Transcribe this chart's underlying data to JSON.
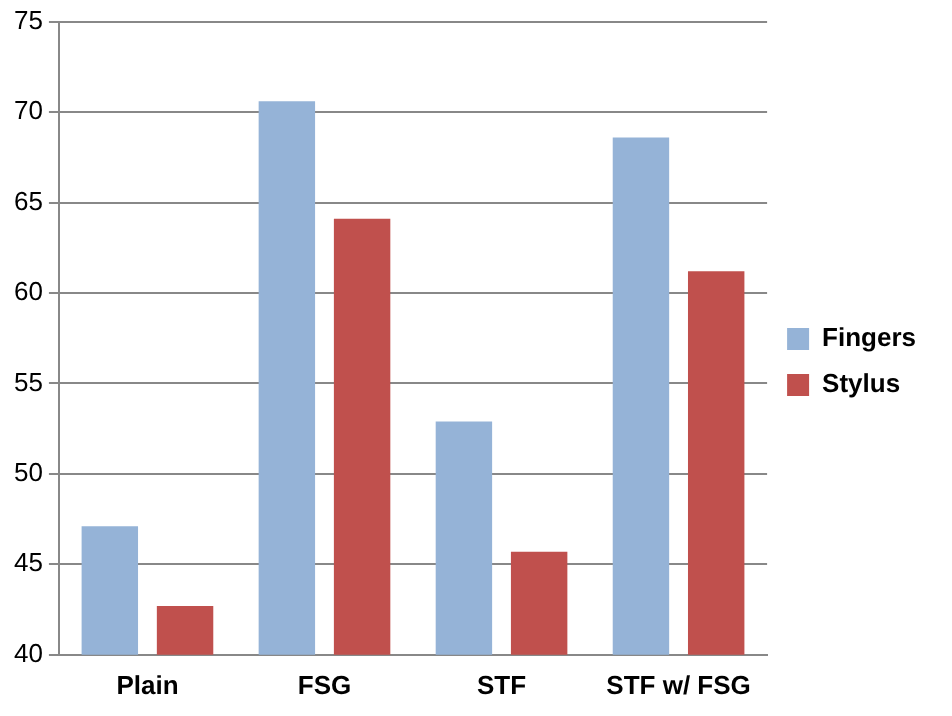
{
  "chart_data": {
    "type": "bar",
    "categories": [
      "Plain",
      "FSG",
      "STF",
      "STF w/ FSG"
    ],
    "series": [
      {
        "name": "Fingers",
        "color": "#95b3d7",
        "values": [
          47.1,
          70.6,
          52.9,
          68.6
        ]
      },
      {
        "name": "Stylus",
        "color": "#c0504d",
        "values": [
          42.7,
          64.1,
          45.7,
          61.2
        ]
      }
    ],
    "ylim": [
      40,
      75
    ],
    "yticks": [
      40,
      45,
      50,
      55,
      60,
      65,
      70,
      75
    ],
    "grid": "y",
    "legend": "right"
  }
}
